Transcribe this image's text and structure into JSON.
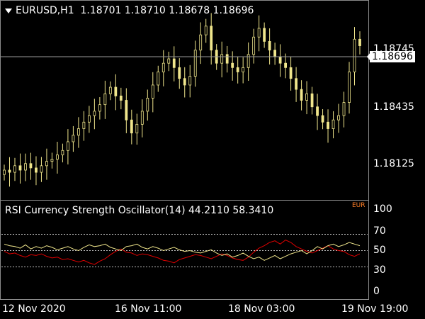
{
  "main_chart": {
    "header": "EURUSD,H1  1.18701 1.18710 1.18678 1.18696",
    "price_ticks": [
      "1.18745",
      "1.18435",
      "1.18125"
    ],
    "current_price": "1.18696",
    "bar_color": "#f0e68c",
    "price_line_color": "#9a9a9a"
  },
  "indicator": {
    "title": "RSI Currency Strength Oscillator(14) 44.2110 58.3410",
    "badge": "EUR",
    "badge_color": "#ff7f27",
    "level_ticks": [
      "100",
      "70",
      "50",
      "30",
      "0"
    ],
    "series_colors": {
      "red": "#e00000",
      "yellow": "#f0e68c"
    }
  },
  "time_axis": [
    "12 Nov 2020",
    "16 Nov 11:00",
    "18 Nov 03:00",
    "19 Nov 19:00"
  ],
  "chart_data": [
    {
      "type": "candlestick",
      "symbol": "EURUSD",
      "timeframe": "H1",
      "ylim": [
        1.18,
        1.189
      ],
      "close_approx": [
        1.1813,
        1.1812,
        1.1815,
        1.1813,
        1.1816,
        1.1814,
        1.1812,
        1.1815,
        1.1817,
        1.1818,
        1.182,
        1.1822,
        1.1826,
        1.1829,
        1.1832,
        1.1835,
        1.1838,
        1.184,
        1.1843,
        1.1848,
        1.1851,
        1.1847,
        1.1845,
        1.1836,
        1.183,
        1.1834,
        1.184,
        1.1846,
        1.1852,
        1.1858,
        1.1862,
        1.1864,
        1.186,
        1.1855,
        1.1852,
        1.1856,
        1.1868,
        1.1875,
        1.1879,
        1.1868,
        1.1862,
        1.1866,
        1.1862,
        1.186,
        1.1858,
        1.186,
        1.1866,
        1.1874,
        1.1878,
        1.1872,
        1.1868,
        1.1865,
        1.1862,
        1.186,
        1.1855,
        1.185,
        1.1845,
        1.1848,
        1.1842,
        1.1838,
        1.1835,
        1.1832,
        1.1836,
        1.1838,
        1.1844,
        1.1858,
        1.1873,
        1.187
      ]
    },
    {
      "type": "line",
      "title": "RSI Currency Strength Oscillator(14)",
      "ylim": [
        0,
        100
      ],
      "levels": [
        30,
        50,
        70
      ],
      "series": [
        {
          "color": "red",
          "values": [
            49,
            46,
            47,
            44,
            42,
            45,
            44,
            46,
            43,
            41,
            42,
            39,
            40,
            38,
            36,
            38,
            35,
            33,
            37,
            40,
            45,
            49,
            52,
            48,
            47,
            44,
            46,
            45,
            43,
            41,
            38,
            37,
            35,
            39,
            41,
            43,
            45,
            44,
            42,
            40,
            43,
            46,
            44,
            41,
            39,
            38,
            42,
            48,
            53,
            56,
            60,
            62,
            58,
            63,
            60,
            55,
            52,
            49,
            47,
            50,
            53,
            56,
            52,
            50,
            49,
            45,
            43,
            46
          ]
        },
        {
          "color": "yellow",
          "values": [
            58,
            56,
            55,
            53,
            57,
            52,
            55,
            53,
            56,
            54,
            51,
            53,
            55,
            52,
            50,
            54,
            57,
            55,
            56,
            58,
            54,
            52,
            50,
            55,
            56,
            58,
            54,
            52,
            55,
            53,
            50,
            52,
            54,
            51,
            49,
            50,
            48,
            47,
            49,
            51,
            47,
            44,
            46,
            42,
            44,
            47,
            43,
            40,
            42,
            38,
            41,
            44,
            40,
            43,
            46,
            48,
            50,
            46,
            50,
            55,
            52,
            56,
            58,
            55,
            57,
            60,
            58,
            56
          ]
        }
      ]
    }
  ]
}
